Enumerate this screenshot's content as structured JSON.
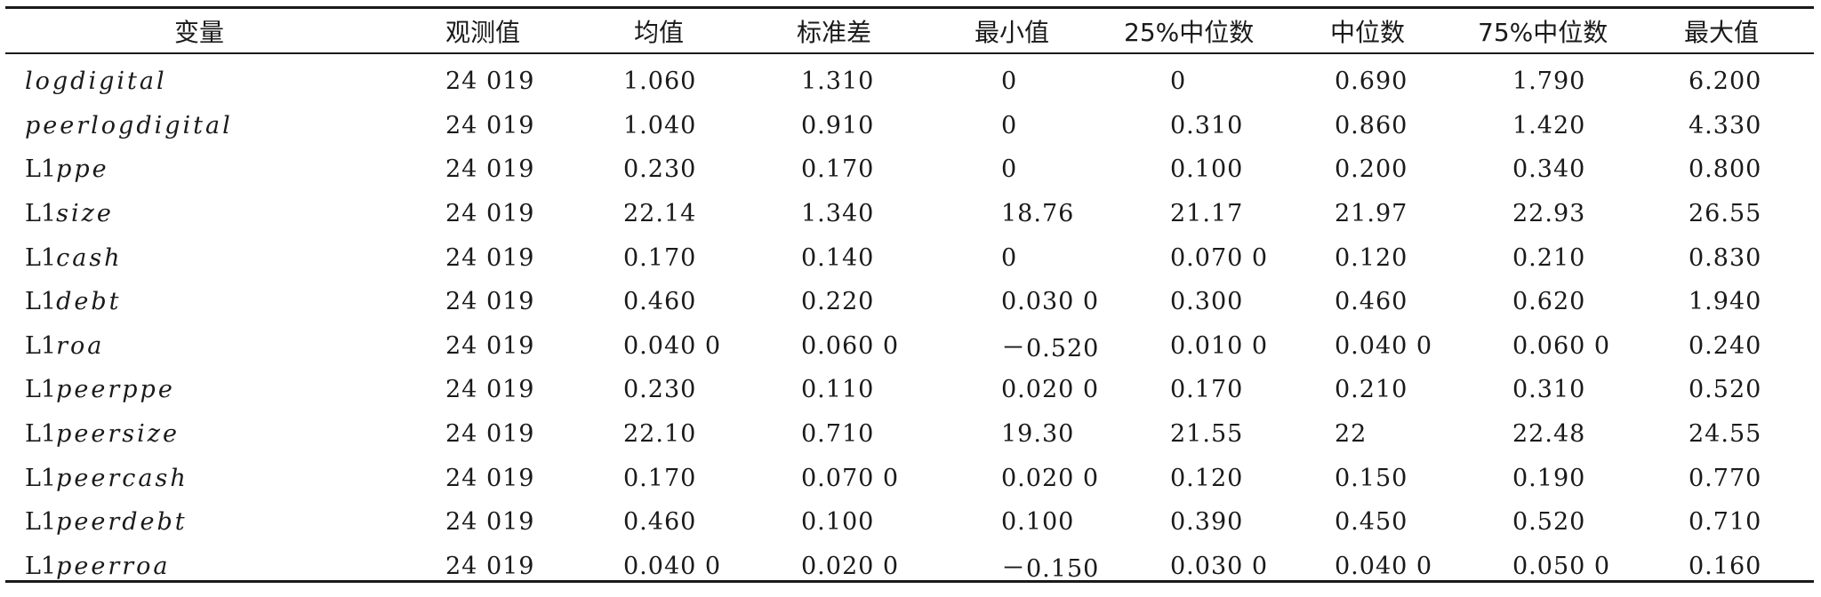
{
  "headers": [
    "变量",
    "观测值",
    "均值",
    "标准差",
    "最小值",
    "25%中位数",
    "中位数",
    "75%中位数",
    "最大值"
  ],
  "rows": [
    {
      "var_prefix": "",
      "var_name": "logdigital",
      "values": [
        "24 019",
        "1.060",
        "1.310",
        "0",
        "0",
        "0.690",
        "1.790",
        "6.200"
      ]
    },
    {
      "var_prefix": "",
      "var_name": "peerlogdigital",
      "values": [
        "24 019",
        "1.040",
        "0.910",
        "0",
        "0.310",
        "0.860",
        "1.420",
        "4.330"
      ]
    },
    {
      "var_prefix": "L1",
      "var_name": "ppe",
      "values": [
        "24 019",
        "0.230",
        "0.170",
        "0",
        "0.100",
        "0.200",
        "0.340",
        "0.800"
      ]
    },
    {
      "var_prefix": "L1",
      "var_name": "size",
      "values": [
        "24 019",
        "22.14",
        "1.340",
        "18.76",
        "21.17",
        "21.97",
        "22.93",
        "26.55"
      ]
    },
    {
      "var_prefix": "L1",
      "var_name": "cash",
      "values": [
        "24 019",
        "0.170",
        "0.140",
        "0",
        "0.070 0",
        "0.120",
        "0.210",
        "0.830"
      ]
    },
    {
      "var_prefix": "L1",
      "var_name": "debt",
      "values": [
        "24 019",
        "0.460",
        "0.220",
        "0.030 0",
        "0.300",
        "0.460",
        "0.620",
        "1.940"
      ]
    },
    {
      "var_prefix": "L1",
      "var_name": "roa",
      "values": [
        "24 019",
        "0.040 0",
        "0.060 0",
        "－0.520",
        "0.010 0",
        "0.040 0",
        "0.060 0",
        "0.240"
      ]
    },
    {
      "var_prefix": "L1",
      "var_name": "peerppe",
      "values": [
        "24 019",
        "0.230",
        "0.110",
        "0.020 0",
        "0.170",
        "0.210",
        "0.310",
        "0.520"
      ]
    },
    {
      "var_prefix": "L1",
      "var_name": "peersize",
      "values": [
        "24 019",
        "22.10",
        "0.710",
        "19.30",
        "21.55",
        "22",
        "22.48",
        "24.55"
      ]
    },
    {
      "var_prefix": "L1",
      "var_name": "peercash",
      "values": [
        "24 019",
        "0.170",
        "0.070 0",
        "0.020 0",
        "0.120",
        "0.150",
        "0.190",
        "0.770"
      ]
    },
    {
      "var_prefix": "L1",
      "var_name": "peerdebt",
      "values": [
        "24 019",
        "0.460",
        "0.100",
        "0.100",
        "0.390",
        "0.450",
        "0.520",
        "0.710"
      ]
    },
    {
      "var_prefix": "L1",
      "var_name": "peerroa",
      "values": [
        "24 019",
        "0.040 0",
        "0.020 0",
        "－0.150",
        "0.030 0",
        "0.040 0",
        "0.050 0",
        "0.160"
      ]
    }
  ]
}
